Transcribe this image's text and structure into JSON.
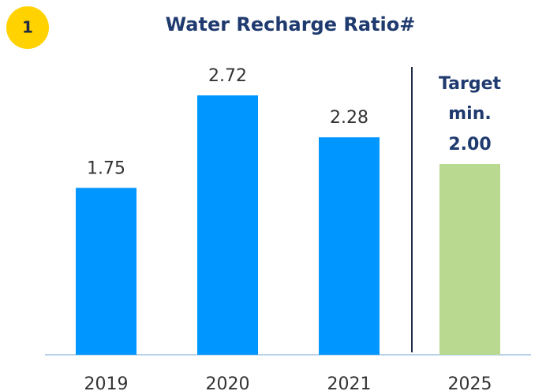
{
  "badge": "1",
  "chart_data": {
    "type": "bar",
    "title": "Water Recharge Ratio#",
    "categories": [
      "2019",
      "2020",
      "2021",
      "2025"
    ],
    "values": [
      1.75,
      2.72,
      2.28,
      2.0
    ],
    "value_labels": [
      "1.75",
      "2.72",
      "2.28",
      "2.00"
    ],
    "colors": [
      "#0096ff",
      "#0096ff",
      "#0096ff",
      "#b8d98f"
    ],
    "annotation": [
      "Target",
      "min."
    ],
    "ylim": [
      0,
      3.72
    ]
  }
}
